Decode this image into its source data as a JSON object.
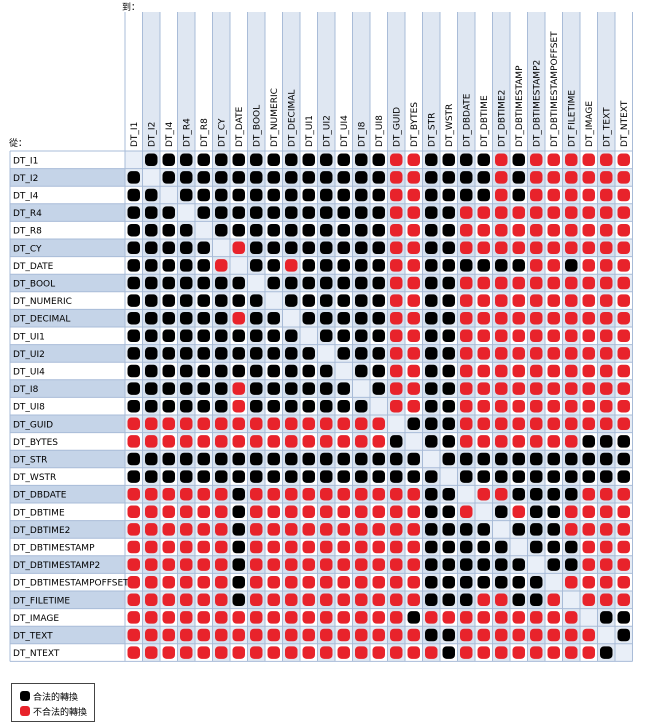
{
  "to_label": "到：",
  "from_label": "從：",
  "colors": {
    "legal": "#000000",
    "illegal": "#e8232b",
    "grid_line": "#a9bcd8",
    "band_dark": "#c5d4e8",
    "band_light": "#ffffff"
  },
  "types": [
    "DT_I1",
    "DT_I2",
    "DT_I4",
    "DT_R4",
    "DT_R8",
    "DT_CY",
    "DT_DATE",
    "DT_BOOL",
    "DT_NUMERIC",
    "DT_DECIMAL",
    "DT_UI1",
    "DT_UI2",
    "DT_UI4",
    "DT_I8",
    "DT_UI8",
    "DT_GUID",
    "DT_BYTES",
    "DT_STR",
    "DT_WSTR",
    "DT_DBDATE",
    "DT_DBTIME",
    "DT_DBTIME2",
    "DT_DBTIMESTAMP",
    "DT_DBTIMESTAMP2",
    "DT_DBTIMESTAMPOFFSET",
    "DT_FILETIME",
    "DT_IMAGE",
    "DT_TEXT",
    "DT_NTEXT"
  ],
  "matrix": [
    "-BBBBBBBBBBBBBBRRBBBBRBRRRRRR",
    "B-BBBBBBBBBBBBBRRBBBBRBRRRRRR",
    "BB-BBBBBBBBBBBBRRBBBBRBRRRRRR",
    "BBB-BBBBBBBBBBBRRBBRRRRRRRRRR",
    "BBBB-BBBBBBBBBBRRBBRRRRRRRRRR",
    "BBBBB-RBBBBBBBBRRBBRRRRRRRRRR",
    "BBBBBR-BBRBBBBBRRBBBBBBRRBRRR",
    "BBBBBBB-BBBBBBBRRBBRRRRRRRRRR",
    "BBBBBBBB-BBBBBBRRBBRRRRRRRRRR",
    "BBBBBBRBB-BBBBBRRBBRRRRRRRRRR",
    "BBBBBBBBBB-BBBBRRBBRRRRRRRRRR",
    "BBBBBBBBBBB-BBBRRBBRRRRRRRRRR",
    "BBBBBBBBBBBB-BBRRBBRRRRRRRRRR",
    "BBBBBBRBBBBBB-BRRBBRRRRRRRRRR",
    "BBBBBBRBBBBBBB-RRBBRRRRRRRRRR",
    "RRRRRRRRRRRRRRR-BBBRRRRRRRRRR",
    "RRRRRRRRRRRRRRRB-BBRRRRRRRBBB",
    "BBBBBBBBBBBBBBBBB-BBBBBBBBBBB",
    "BBBBBBBBBBBBBBBBBB-BBBBBBBBBB",
    "RRRRRRBRRRRRRRRRRBB-RRBBBBRRR",
    "RRRRRRBRRRRRRRRRRBBR-BRBBRRRR",
    "RRRRRRBRRRRRRRRRRBBBB-BBBRRRR",
    "RRRRRRBRRRRRRRRRRBBBBB-BBBRRR",
    "RRRRRRBRRRRRRRRRRBBBBBB-BBRRR",
    "RRRRRRBRRRRRRRRRRBBBBBBB-RRRR",
    "RRRRRRBRRRRRRRRRRBBBRRBBR-RRR",
    "RRRRRRRRRRRRRRRRBRRRRRRRRR-BB",
    "RRRRRRRRRRRRRRRRRBBRRRRRRRR-B",
    "RRRRRRRRRRRRRRRRRRBRRRRRRRRB-"
  ],
  "legend": {
    "legal": "合法的轉換",
    "illegal": "不合法的轉換"
  }
}
